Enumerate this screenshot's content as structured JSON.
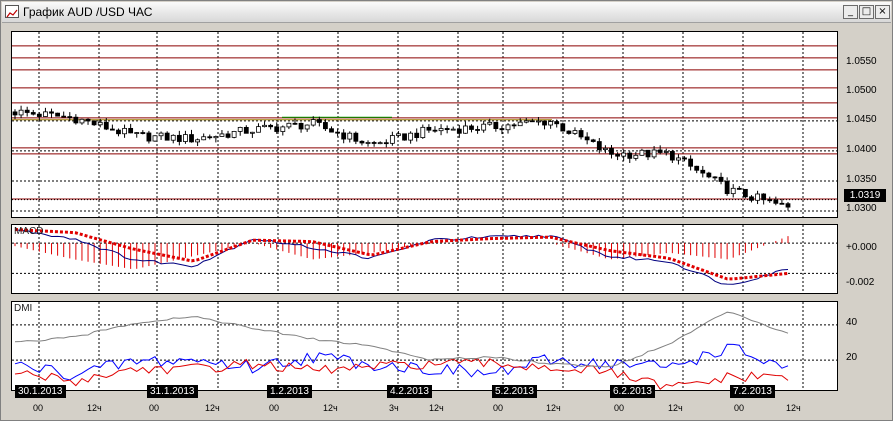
{
  "window": {
    "title": "График AUD /USD  ЧАС",
    "min_label": "_",
    "max_label": "□",
    "close_label": "×"
  },
  "colors": {
    "candle": "#000000",
    "resistance": "#8b0000",
    "macd_line": "#000080",
    "macd_signal": "#e00000",
    "dmi_plus": "#0000ff",
    "dmi_minus": "#e00000",
    "adx": "#808080"
  },
  "price_axis": {
    "labels": [
      "1.0550",
      "1.0500",
      "1.0450",
      "1.0400",
      "1.0350",
      "1.0300"
    ],
    "current_price": "1.0319"
  },
  "macd": {
    "name": "MACD",
    "labels": [
      "+0.000",
      "-0.002"
    ]
  },
  "dmi": {
    "name": "DMI",
    "labels": [
      "40",
      "20"
    ]
  },
  "time_axis": {
    "dates": [
      "30.1.2013",
      "31.1.2013",
      "1.2.2013",
      "4.2.2013",
      "5.2.2013",
      "6.2.2013",
      "7.2.2013"
    ],
    "hours": [
      "00",
      "12ч",
      "00",
      "12ч",
      "00",
      "12ч",
      "3ч",
      "12ч",
      "00",
      "12ч",
      "00",
      "12ч",
      "00",
      "12ч"
    ]
  },
  "chart_data": [
    {
      "type": "line",
      "title": "График AUD /USD  ЧАС",
      "xlabel": "",
      "ylabel": "",
      "x": [
        "30.1.2013 00",
        "30.1.2013 12",
        "31.1.2013 00",
        "31.1.2013 12",
        "1.2.2013 00",
        "1.2.2013 12",
        "4.2.2013 03",
        "4.2.2013 12",
        "5.2.2013 00",
        "5.2.2013 12",
        "6.2.2013 00",
        "6.2.2013 12",
        "7.2.2013 00",
        "7.2.2013 12"
      ],
      "series": [
        {
          "values": [
            1.0465,
            1.0455,
            1.0425,
            1.042,
            1.0435,
            1.0445,
            1.041,
            1.0435,
            1.044,
            1.045,
            1.0395,
            1.0395,
            1.0335,
            1.0305
          ]
        }
      ],
      "horizontal_lines": [
        1.0575,
        1.0555,
        1.0535,
        1.0505,
        1.048,
        1.0455,
        1.0405,
        1.0395,
        1.032
      ],
      "ylim": [
        1.029,
        1.0598
      ],
      "current": 1.0319,
      "grid": true
    },
    {
      "type": "line",
      "title": "MACD",
      "x": [
        "30.1.2013 00",
        "30.1.2013 12",
        "31.1.2013 00",
        "31.1.2013 12",
        "1.2.2013 00",
        "1.2.2013 12",
        "4.2.2013 03",
        "4.2.2013 12",
        "5.2.2013 00",
        "5.2.2013 12",
        "6.2.2013 00",
        "6.2.2013 12",
        "7.2.2013 00",
        "7.2.2013 12"
      ],
      "series": [
        {
          "values": [
            0.0009,
            0.0003,
            -0.0011,
            -0.0015,
            0.0003,
            -0.0003,
            -0.001,
            0.0002,
            0.0004,
            0.0005,
            -0.0009,
            -0.0012,
            -0.0028,
            -0.0017
          ]
        },
        {
          "values": [
            0.0009,
            0.0007,
            -0.0004,
            -0.0012,
            0.0002,
            0.0001,
            -0.0008,
            0.0001,
            0.0003,
            0.0004,
            -0.0005,
            -0.001,
            -0.0024,
            -0.002
          ]
        }
      ],
      "ylim": [
        -0.0033,
        0.0012
      ],
      "grid": true
    },
    {
      "type": "line",
      "title": "DMI",
      "x": [
        "30.1.2013 00",
        "30.1.2013 12",
        "31.1.2013 00",
        "31.1.2013 12",
        "1.2.2013 00",
        "1.2.2013 12",
        "4.2.2013 03",
        "4.2.2013 12",
        "5.2.2013 00",
        "5.2.2013 12",
        "6.2.2013 00",
        "6.2.2013 12",
        "7.2.2013 00",
        "7.2.2013 12"
      ],
      "series": [
        {
          "values": [
            17,
            12,
            19,
            20,
            16,
            22,
            18,
            15,
            12,
            20,
            18,
            16,
            27,
            15
          ]
        },
        {
          "values": [
            13,
            8,
            15,
            15,
            18,
            14,
            16,
            18,
            18,
            16,
            13,
            4,
            10,
            11
          ]
        },
        {
          "values": [
            30,
            33,
            41,
            45,
            38,
            32,
            28,
            20,
            22,
            18,
            16,
            29,
            48,
            35
          ]
        }
      ],
      "ylim": [
        3,
        53
      ],
      "grid": true
    }
  ]
}
